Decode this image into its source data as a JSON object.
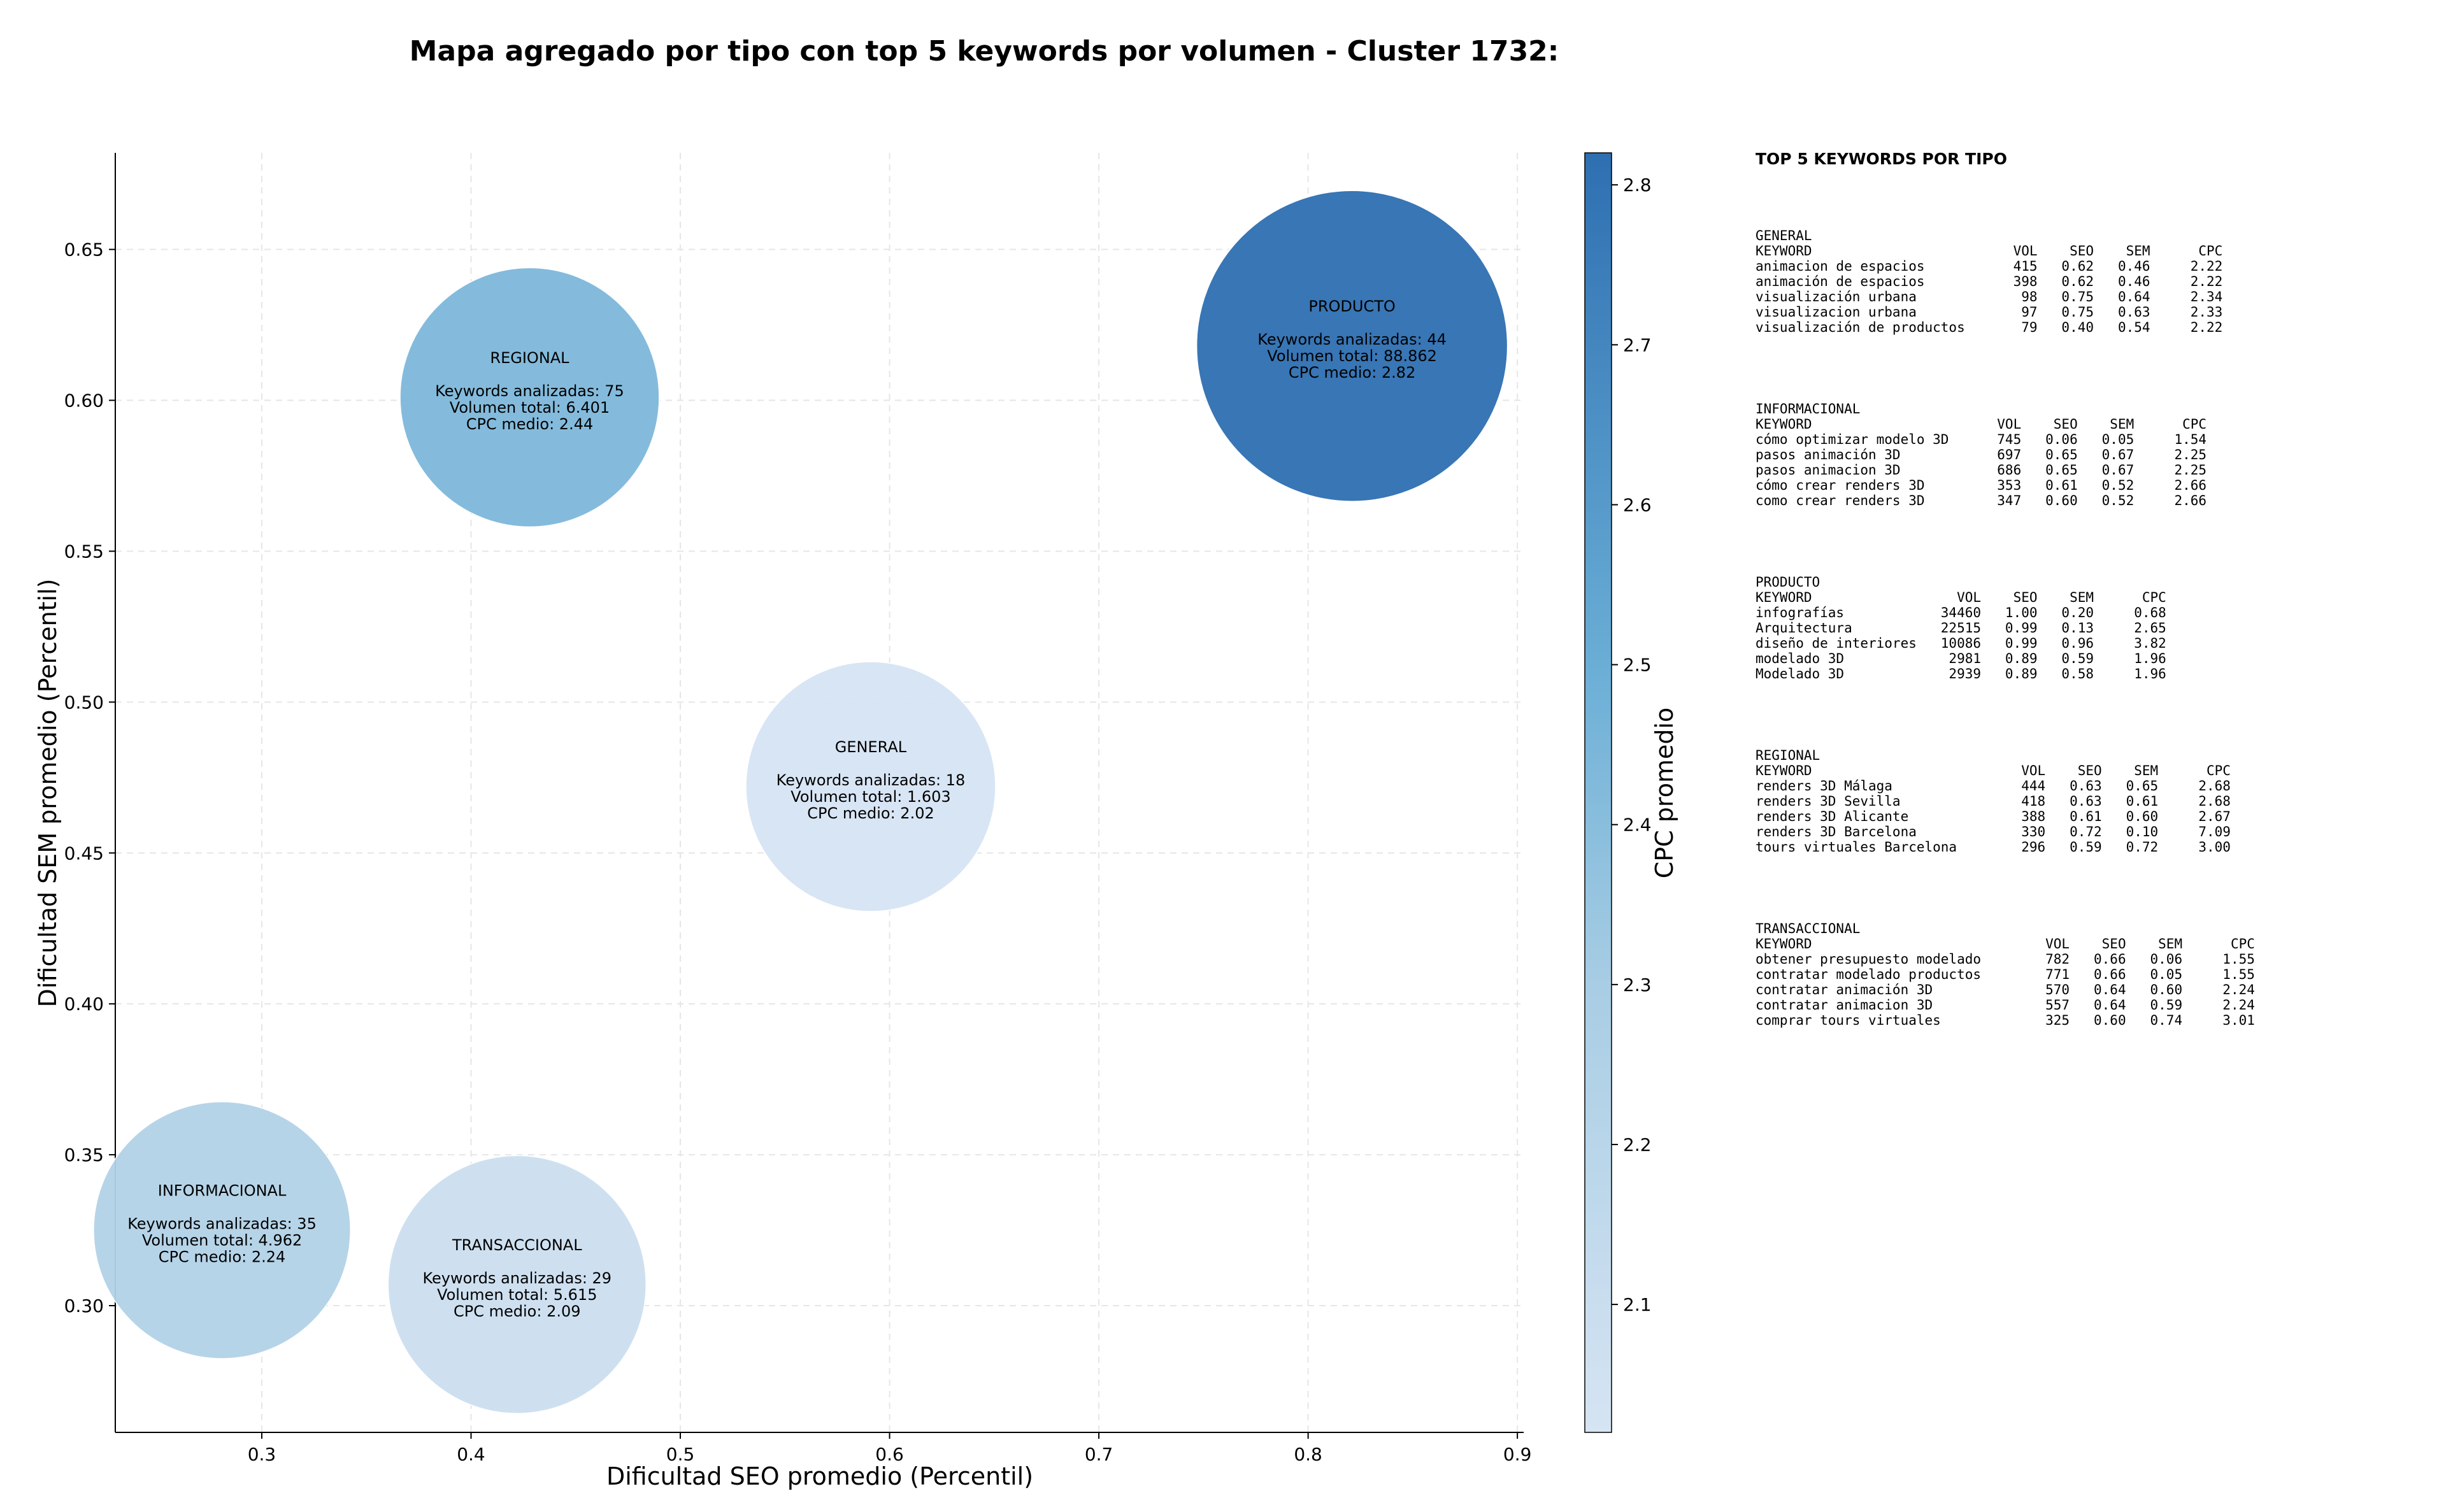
{
  "title": "Mapa agregado por tipo con top 5 keywords por volumen - Cluster 1732:",
  "chart_data": {
    "type": "scatter",
    "title": "Mapa agregado por tipo con top 5 keywords por volumen - Cluster 1732:",
    "xlabel": "Dificultad SEO promedio (Percentil)",
    "ylabel": "Dificultad SEM promedio (Percentil)",
    "xlim": [
      0.23,
      0.903
    ],
    "ylim": [
      0.258,
      0.682
    ],
    "xticks": [
      0.3,
      0.4,
      0.5,
      0.6,
      0.7,
      0.8,
      0.9
    ],
    "yticks": [
      0.3,
      0.35,
      0.4,
      0.45,
      0.5,
      0.55,
      0.6,
      0.65
    ],
    "grid": true,
    "colorbar": {
      "label": "CPC promedio",
      "min": 2.02,
      "max": 2.82,
      "ticks": [
        2.1,
        2.2,
        2.3,
        2.4,
        2.5,
        2.6,
        2.7,
        2.8
      ],
      "colormap": [
        "#d6e4f3",
        "#a8cde4",
        "#6aaed6",
        "#2d6fb1"
      ]
    },
    "points": [
      {
        "tipo": "REGIONAL",
        "seo": 0.428,
        "sem": 0.601,
        "keywords": 75,
        "volumen": "6.401",
        "volumen_num": 6401,
        "cpc": 2.44,
        "text_keywords": "Keywords analizadas: 75",
        "text_volumen": "Volumen total: 6.401",
        "text_cpc": "CPC medio: 2.44"
      },
      {
        "tipo": "PRODUCTO",
        "seo": 0.821,
        "sem": 0.618,
        "keywords": 44,
        "volumen": "88.862",
        "volumen_num": 88862,
        "cpc": 2.82,
        "text_keywords": "Keywords analizadas: 44",
        "text_volumen": "Volumen total: 88.862",
        "text_cpc": "CPC medio: 2.82"
      },
      {
        "tipo": "GENERAL",
        "seo": 0.591,
        "sem": 0.472,
        "keywords": 18,
        "volumen": "1.603",
        "volumen_num": 1603,
        "cpc": 2.02,
        "text_keywords": "Keywords analizadas: 18",
        "text_volumen": "Volumen total: 1.603",
        "text_cpc": "CPC medio: 2.02"
      },
      {
        "tipo": "INFORMACIONAL",
        "seo": 0.281,
        "sem": 0.325,
        "keywords": 35,
        "volumen": "4.962",
        "volumen_num": 4962,
        "cpc": 2.24,
        "text_keywords": "Keywords analizadas: 35",
        "text_volumen": "Volumen total: 4.962",
        "text_cpc": "CPC medio: 2.24"
      },
      {
        "tipo": "TRANSACCIONAL",
        "seo": 0.422,
        "sem": 0.307,
        "keywords": 29,
        "volumen": "5.615",
        "volumen_num": 5615,
        "cpc": 2.09,
        "text_keywords": "Keywords analizadas: 29",
        "text_volumen": "Volumen total: 5.615",
        "text_cpc": "CPC medio: 2.09"
      }
    ]
  },
  "table": {
    "heading": "TOP 5 KEYWORDS POR TIPO",
    "groups": [
      {
        "name": "GENERAL",
        "header": "KEYWORD                         VOL    SEO    SEM      CPC",
        "rows": [
          "animacion de espacios           415   0.62   0.46     2.22",
          "animación de espacios           398   0.62   0.46     2.22",
          "visualización urbana             98   0.75   0.64     2.34",
          "visualizacion urbana             97   0.75   0.63     2.33",
          "visualización de productos       79   0.40   0.54     2.22"
        ]
      },
      {
        "name": "INFORMACIONAL",
        "header": "KEYWORD                       VOL    SEO    SEM      CPC",
        "rows": [
          "cómo optimizar modelo 3D      745   0.06   0.05     1.54",
          "pasos animación 3D            697   0.65   0.67     2.25",
          "pasos animacion 3D            686   0.65   0.67     2.25",
          "cómo crear renders 3D         353   0.61   0.52     2.66",
          "como crear renders 3D         347   0.60   0.52     2.66"
        ]
      },
      {
        "name": "PRODUCTO",
        "header": "KEYWORD                  VOL    SEO    SEM      CPC",
        "rows": [
          "infografías            34460   1.00   0.20     0.68",
          "Arquitectura           22515   0.99   0.13     2.65",
          "diseño de interiores   10086   0.99   0.96     3.82",
          "modelado 3D             2981   0.89   0.59     1.96",
          "Modelado 3D             2939   0.89   0.58     1.96"
        ]
      },
      {
        "name": "REGIONAL",
        "header": "KEYWORD                          VOL    SEO    SEM      CPC",
        "rows": [
          "renders 3D Málaga                444   0.63   0.65     2.68",
          "renders 3D Sevilla               418   0.63   0.61     2.68",
          "renders 3D Alicante              388   0.61   0.60     2.67",
          "renders 3D Barcelona             330   0.72   0.10     7.09",
          "tours virtuales Barcelona        296   0.59   0.72     3.00"
        ]
      },
      {
        "name": "TRANSACCIONAL",
        "header": "KEYWORD                             VOL    SEO    SEM      CPC",
        "rows": [
          "obtener presupuesto modelado        782   0.66   0.06     1.55",
          "contratar modelado productos        771   0.66   0.05     1.55",
          "contratar animación 3D              570   0.64   0.60     2.24",
          "contratar animacion 3D              557   0.64   0.59     2.24",
          "comprar tours virtuales             325   0.60   0.74     3.01"
        ]
      }
    ]
  }
}
